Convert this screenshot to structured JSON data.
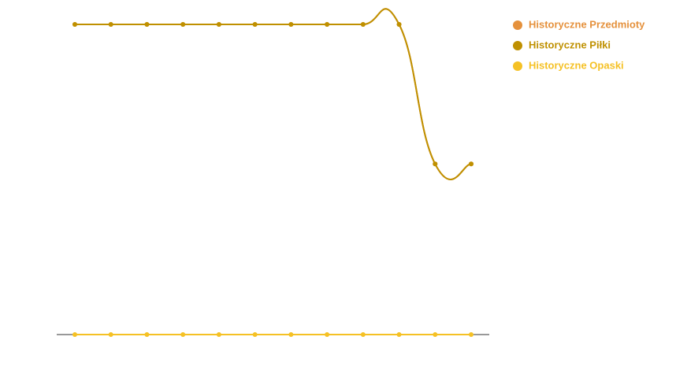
{
  "chart_data": {
    "type": "line",
    "categories": [
      null,
      null,
      null,
      null,
      null,
      null,
      null,
      null,
      null,
      null,
      null,
      null
    ],
    "ylim": [
      0,
      100
    ],
    "legend": "top-right",
    "series": [
      {
        "name": "Historyczne Przedmioty",
        "color": "#e5913c",
        "values": [
          100,
          100,
          100,
          100,
          100,
          100,
          100,
          100,
          100,
          100,
          55,
          55
        ]
      },
      {
        "name": "Historyczne Piłki",
        "color": "#bf9000",
        "values": [
          100,
          100,
          100,
          100,
          100,
          100,
          100,
          100,
          100,
          100,
          55,
          55
        ]
      },
      {
        "name": "Historyczne Opaski",
        "color": "#f5c125",
        "values": [
          0,
          0,
          0,
          0,
          0,
          0,
          0,
          0,
          0,
          0,
          0,
          0
        ]
      }
    ]
  }
}
